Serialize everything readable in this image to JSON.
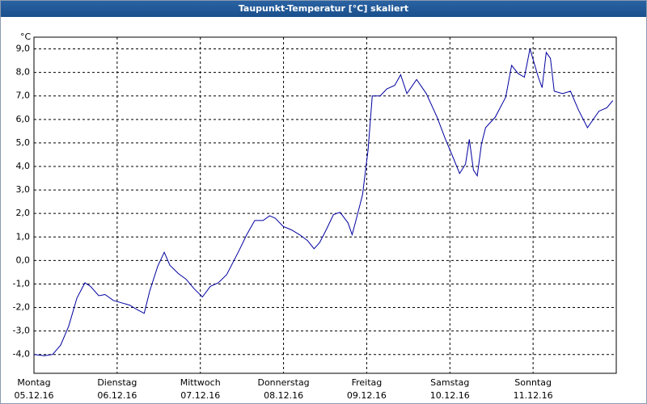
{
  "chart_data": {
    "type": "line",
    "title": "Taupunkt-Temperatur [°C] skaliert",
    "unit": "°C",
    "x": [
      0,
      3,
      5.4,
      7.7,
      10,
      12.4,
      14.7,
      16.3,
      18.7,
      20.5,
      22.9,
      25.2,
      27.6,
      29.9,
      31.8,
      33.4,
      35.7,
      37.6,
      39.2,
      41.6,
      43.9,
      46.2,
      48.6,
      50.9,
      53.2,
      55.6,
      59.1,
      61.4,
      63.7,
      66.1,
      68,
      69.6,
      71.9,
      74.3,
      76.6,
      78.9,
      80.8,
      82.4,
      84.3,
      86.4,
      88.3,
      90.6,
      91.8,
      92.9,
      94.8,
      96.4,
      97.6,
      99.9,
      101.8,
      104.1,
      105.8,
      107.6,
      110.4,
      113.2,
      116.3,
      118.6,
      120.3,
      122.8,
      124.5,
      125.6,
      126.8,
      127.9,
      129.1,
      130.3,
      133.1,
      136.1,
      137.8,
      139.7,
      141.5,
      143.1,
      145.5,
      146.6,
      147.8,
      149,
      150.1,
      152.5,
      154.8,
      157.1,
      159.7,
      163,
      165.3,
      167
    ],
    "series": [
      {
        "name": "Taupunkt",
        "color": "#0000a0",
        "values": [
          -4.0,
          -4.05,
          -4.0,
          -3.6,
          -2.8,
          -1.6,
          -0.95,
          -1.1,
          -1.5,
          -1.45,
          -1.7,
          -1.8,
          -1.9,
          -2.1,
          -2.25,
          -1.3,
          -0.25,
          0.35,
          -0.2,
          -0.55,
          -0.8,
          -1.2,
          -1.55,
          -1.1,
          -0.95,
          -0.6,
          0.4,
          1.1,
          1.7,
          1.7,
          1.9,
          1.8,
          1.45,
          1.3,
          1.1,
          0.85,
          0.5,
          0.75,
          1.3,
          1.95,
          2.05,
          1.6,
          1.1,
          1.7,
          2.8,
          4.7,
          7.0,
          7.0,
          7.3,
          7.45,
          7.9,
          7.1,
          7.7,
          7.1,
          6.1,
          5.2,
          4.6,
          3.7,
          4.1,
          5.15,
          3.85,
          3.6,
          4.95,
          5.65,
          6.1,
          6.95,
          8.3,
          7.95,
          7.8,
          9.0,
          7.8,
          7.35,
          8.85,
          8.6,
          7.2,
          7.1,
          7.2,
          6.4,
          5.65,
          6.35,
          6.5,
          6.8
        ]
      }
    ],
    "xlim": [
      0,
      168
    ],
    "xticks": [
      24,
      48,
      72,
      96,
      120,
      144
    ],
    "days": [
      {
        "name": "Montag",
        "date": "05.12.16"
      },
      {
        "name": "Dienstag",
        "date": "06.12.16"
      },
      {
        "name": "Mittwoch",
        "date": "07.12.16"
      },
      {
        "name": "Donnerstag",
        "date": "08.12.16"
      },
      {
        "name": "Freitag",
        "date": "09.12.16"
      },
      {
        "name": "Samstag",
        "date": "10.12.16"
      },
      {
        "name": "Sonntag",
        "date": "11.12.16"
      }
    ],
    "ylim": [
      -4.8,
      9.5
    ],
    "yticks": [
      {
        "value": -4,
        "label": "-4,0"
      },
      {
        "value": -3,
        "label": "-3,0"
      },
      {
        "value": -2,
        "label": "-2,0"
      },
      {
        "value": -1,
        "label": "-1,0"
      },
      {
        "value": 0,
        "label": "0,0"
      },
      {
        "value": 1,
        "label": "1,0"
      },
      {
        "value": 2,
        "label": "2,0"
      },
      {
        "value": 3,
        "label": "3,0"
      },
      {
        "value": 4,
        "label": "4,0"
      },
      {
        "value": 5,
        "label": "5,0"
      },
      {
        "value": 6,
        "label": "6,0"
      },
      {
        "value": 7,
        "label": "7,0"
      },
      {
        "value": 8,
        "label": "8,0"
      },
      {
        "value": 9,
        "label": "9,0"
      }
    ],
    "grid": true
  }
}
